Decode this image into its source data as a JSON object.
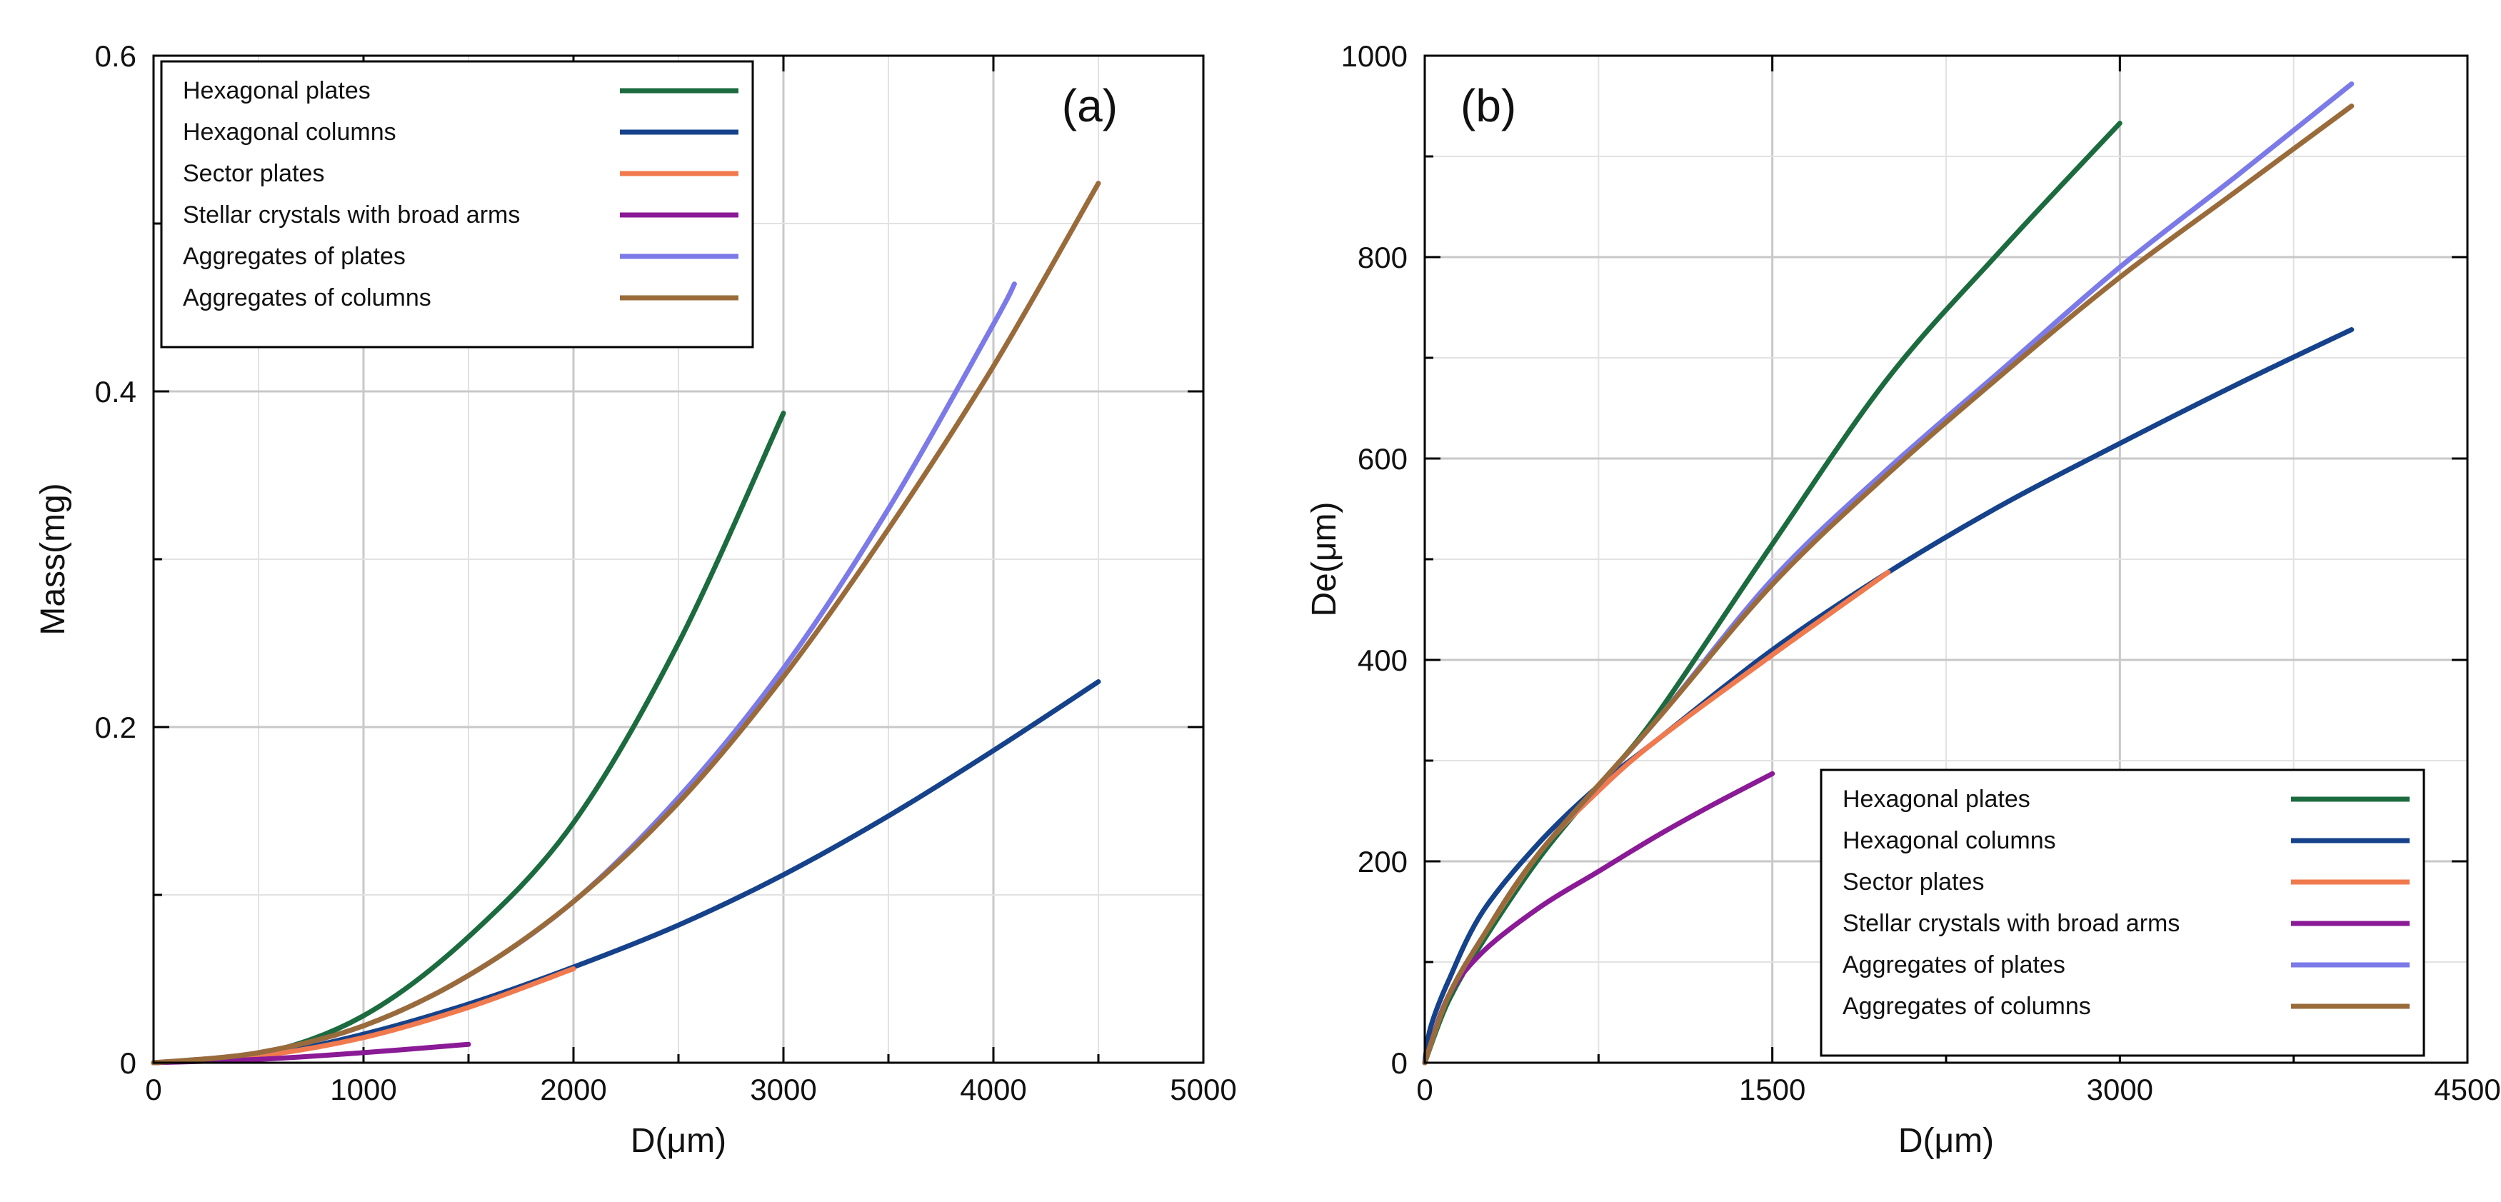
{
  "chart_data": [
    {
      "type": "line",
      "panel_label": "(a)",
      "xlabel": "D(μm)",
      "ylabel": "Mass(mg)",
      "xlim": [
        0,
        5000
      ],
      "ylim": [
        0,
        0.6
      ],
      "xticks": [
        0,
        1000,
        2000,
        3000,
        4000,
        5000
      ],
      "xtick_labels": [
        "0",
        "1000",
        "2000",
        "3000",
        "4000",
        "5000"
      ],
      "yticks": [
        0,
        0.2,
        0.4,
        0.6
      ],
      "ytick_labels": [
        "0",
        "0.2",
        "0.4",
        "0.6"
      ],
      "grid": true,
      "legend": "top-left",
      "series": [
        {
          "name": "Hexagonal plates",
          "color": "#1b6b3f",
          "x": [
            0,
            500,
            1000,
            1500,
            2000,
            2500,
            3000
          ],
          "y": [
            0,
            0.005,
            0.028,
            0.075,
            0.143,
            0.25,
            0.387
          ]
        },
        {
          "name": "Hexagonal columns",
          "color": "#15428a",
          "x": [
            0,
            500,
            1000,
            1500,
            2000,
            2500,
            3000,
            3500,
            4000,
            4500
          ],
          "y": [
            0,
            0.004,
            0.017,
            0.035,
            0.057,
            0.082,
            0.112,
            0.147,
            0.186,
            0.227
          ]
        },
        {
          "name": "Sector plates",
          "color": "#f07a4e",
          "x": [
            0,
            500,
            1000,
            1500,
            2000
          ],
          "y": [
            0,
            0.004,
            0.015,
            0.033,
            0.056
          ]
        },
        {
          "name": "Stellar crystals with broad arms",
          "color": "#8a1a96",
          "x": [
            0,
            500,
            1000,
            1500
          ],
          "y": [
            0,
            0.002,
            0.006,
            0.011
          ]
        },
        {
          "name": "Aggregates of plates",
          "color": "#7b7ae8",
          "x": [
            0,
            500,
            1000,
            1500,
            2000,
            2500,
            3000,
            3500,
            4000,
            4100
          ],
          "y": [
            0,
            0.006,
            0.022,
            0.052,
            0.096,
            0.158,
            0.235,
            0.33,
            0.44,
            0.464
          ]
        },
        {
          "name": "Aggregates of columns",
          "color": "#9a6b3a",
          "x": [
            0,
            500,
            1000,
            1500,
            2000,
            2500,
            3000,
            3500,
            4000,
            4500
          ],
          "y": [
            0,
            0.006,
            0.022,
            0.052,
            0.096,
            0.155,
            0.23,
            0.318,
            0.415,
            0.524
          ]
        }
      ]
    },
    {
      "type": "line",
      "panel_label": "(b)",
      "xlabel": "D(μm)",
      "ylabel": "De(μm)",
      "xlim": [
        0,
        4500
      ],
      "ylim": [
        0,
        1000
      ],
      "xticks": [
        0,
        1500,
        3000,
        4500
      ],
      "xtick_labels": [
        "0",
        "1500",
        "3000",
        "4500"
      ],
      "yticks": [
        0,
        200,
        400,
        600,
        800,
        1000
      ],
      "ytick_labels": [
        "0",
        "200",
        "400",
        "600",
        "800",
        "1000"
      ],
      "grid": true,
      "legend": "bottom-right",
      "series": [
        {
          "name": "Hexagonal plates",
          "color": "#1b6b3f",
          "x": [
            0,
            100,
            250,
            500,
            750,
            1000,
            1500,
            2000,
            2500,
            3000
          ],
          "y": [
            0,
            60,
            120,
            205,
            275,
            345,
            515,
            680,
            810,
            933
          ]
        },
        {
          "name": "Hexagonal columns",
          "color": "#15428a",
          "x": [
            0,
            25,
            100,
            250,
            500,
            750,
            1000,
            1500,
            2000,
            2500,
            3000,
            3500,
            4000
          ],
          "y": [
            0,
            35,
            80,
            150,
            220,
            275,
            320,
            410,
            487,
            555,
            615,
            673,
            728
          ]
        },
        {
          "name": "Sector plates",
          "color": "#f07a4e",
          "x": [
            0,
            100,
            250,
            500,
            750,
            1000,
            1500,
            2000
          ],
          "y": [
            0,
            65,
            125,
            210,
            270,
            320,
            405,
            487
          ]
        },
        {
          "name": "Stellar crystals with broad arms",
          "color": "#8a1a96",
          "x": [
            0,
            100,
            250,
            500,
            750,
            1000,
            1250,
            1500
          ],
          "y": [
            0,
            65,
            110,
            155,
            190,
            225,
            257,
            287
          ]
        },
        {
          "name": "Aggregates of plates",
          "color": "#7b7ae8",
          "x": [
            0,
            100,
            250,
            500,
            1000,
            1500,
            2000,
            2500,
            3000,
            3500,
            4000
          ],
          "y": [
            0,
            65,
            125,
            210,
            340,
            480,
            590,
            690,
            790,
            880,
            972
          ]
        },
        {
          "name": "Aggregates of columns",
          "color": "#9a6b3a",
          "x": [
            0,
            100,
            250,
            500,
            1000,
            1500,
            2000,
            2500,
            3000,
            3500,
            4000
          ],
          "y": [
            0,
            65,
            125,
            210,
            340,
            475,
            585,
            685,
            780,
            865,
            950
          ]
        }
      ]
    }
  ]
}
